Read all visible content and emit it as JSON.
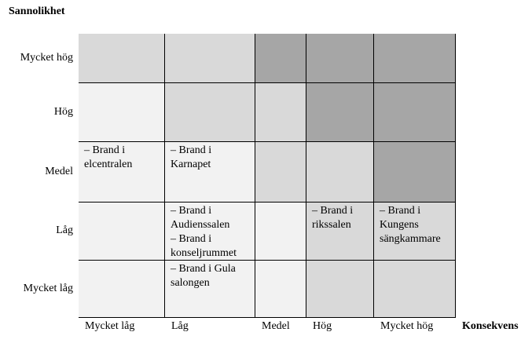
{
  "y_title": "Sannolikhet",
  "x_title": "Konsekvens",
  "rows": [
    "Mycket hög",
    "Hög",
    "Medel",
    "Låg",
    "Mycket låg"
  ],
  "columns": [
    "Mycket låg",
    "Låg",
    "Medel",
    "Hög",
    "Mycket hög"
  ],
  "cells": [
    [
      [],
      [],
      [],
      [],
      []
    ],
    [
      [],
      [],
      [],
      [],
      []
    ],
    [
      [
        "– Brand i elcentralen"
      ],
      [
        "– Brand i Karnapet"
      ],
      [],
      [],
      []
    ],
    [
      [],
      [
        "– Brand i Audienssalen",
        "– Brand i konseljrummet"
      ],
      [],
      [
        "– Brand i rikssalen"
      ],
      [
        "– Brand i Kungens sängkammare"
      ]
    ],
    [
      [],
      [
        "– Brand i Gula salongen"
      ],
      [],
      [],
      []
    ]
  ]
}
